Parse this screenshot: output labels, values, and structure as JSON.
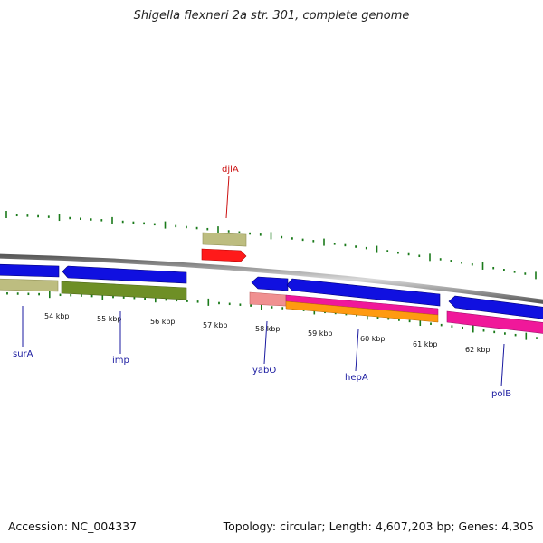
{
  "title": "Shigella flexneri 2a str. 301, complete genome",
  "footer": {
    "accession": "Accession: NC_004337",
    "summary": "Topology: circular; Length: 4,607,203 bp; Genes: 4,305"
  },
  "colors": {
    "backbone": "#8a8a8a",
    "tick": "#1a7a1a",
    "label_blue": "#1a1aa0",
    "label_red": "#cc1111",
    "cds_blue": "#1010e0",
    "khaki": "#bdbd80",
    "olive": "#6e8f26",
    "red": "#ff1a1a",
    "salmon": "#f09090",
    "magenta": "#f0189a",
    "orange": "#ff9a10"
  },
  "scale": {
    "ticks": [
      "54 kbp",
      "55 kbp",
      "56 kbp",
      "57 kbp",
      "58 kbp",
      "59 kbp",
      "60 kbp",
      "61 kbp",
      "62 kbp"
    ]
  },
  "genes": [
    {
      "label": "surA",
      "color": "#1a1aa0"
    },
    {
      "label": "imp",
      "color": "#1a1aa0"
    },
    {
      "label": "djlA",
      "color": "#cc1111"
    },
    {
      "label": "yabO",
      "color": "#1a1aa0"
    },
    {
      "label": "hepA",
      "color": "#1a1aa0"
    },
    {
      "label": "polB",
      "color": "#1a1aa0"
    }
  ]
}
